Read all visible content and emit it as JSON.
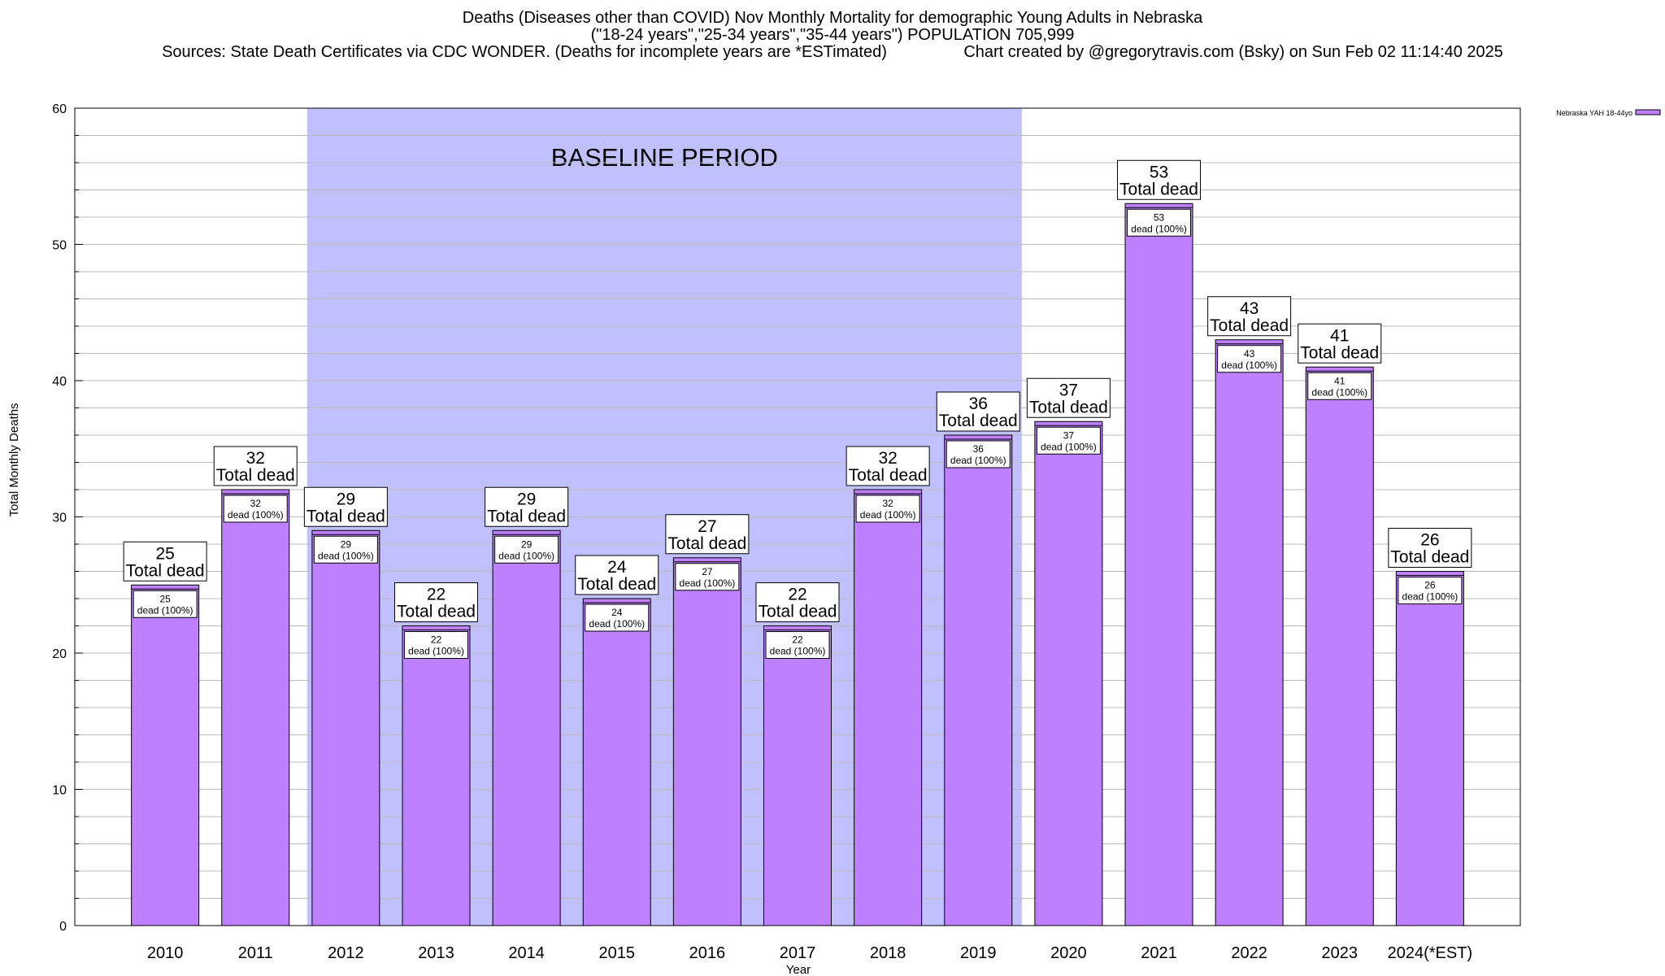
{
  "header": {
    "title_line1": "Deaths (Diseases other than COVID) Nov Monthly Mortality for demographic Young Adults in Nebraska",
    "title_line2": "(\"18-24 years\",\"25-34 years\",\"35-44 years\") POPULATION 705,999",
    "title_line3": "Sources: State Death Certificates via CDC WONDER. (Deaths for incomplete years are *ESTimated)                 Chart created by @gregorytravis.com (Bsky) on Sun Feb 02 11:14:40 2025"
  },
  "chart_data": {
    "type": "bar",
    "title": "Deaths (Diseases other than COVID) Nov Monthly Mortality for demographic Young Adults in Nebraska",
    "xlabel": "Year",
    "ylabel": "Total Monthly Deaths",
    "ylim": [
      0,
      60
    ],
    "yticks": [
      0,
      10,
      20,
      30,
      40,
      50,
      60
    ],
    "grid": true,
    "legend_position": "top-right",
    "bar_color": "#bf80ff",
    "baseline_color": "#c0c0ff",
    "baseline_label": "BASELINE PERIOD",
    "baseline_range": [
      "2012",
      "2019"
    ],
    "categories": [
      "2010",
      "2011",
      "2012",
      "2013",
      "2014",
      "2015",
      "2016",
      "2017",
      "2018",
      "2019",
      "2020",
      "2021",
      "2022",
      "2023",
      "2024(*EST)"
    ],
    "series": [
      {
        "name": "Nebraska YAH 18-44yo",
        "values": [
          25,
          32,
          29,
          22,
          29,
          24,
          27,
          22,
          32,
          36,
          37,
          53,
          43,
          41,
          26
        ]
      }
    ],
    "total_label_suffix": "Total dead",
    "inner_label_suffix": "dead (100%)"
  }
}
